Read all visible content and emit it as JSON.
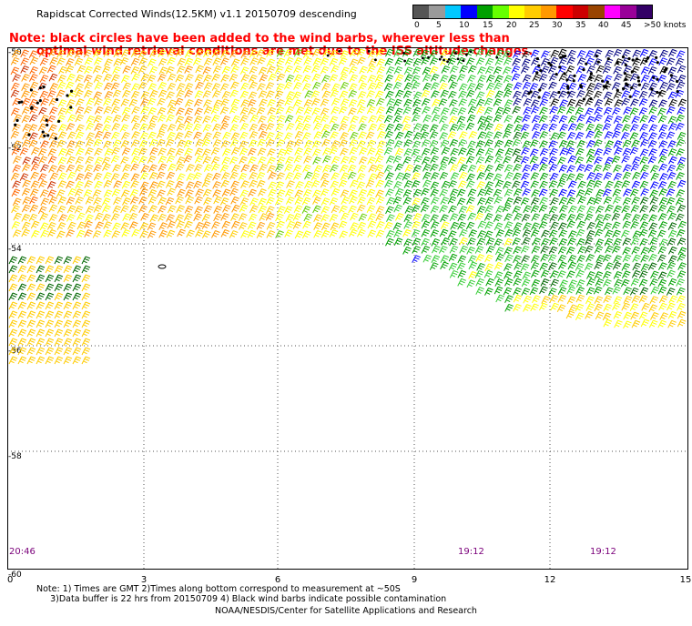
{
  "title": "Rapidscat Corrected Winds(12.5KM) v1.1 20150709 descending",
  "legend": {
    "colors": [
      "#555555",
      "#9a9a9a",
      "#00c8ff",
      "#0000ff",
      "#00a000",
      "#66ff00",
      "#ffff00",
      "#ffcc00",
      "#ff9900",
      "#ff0000",
      "#cc0000",
      "#994400",
      "#ff00ff",
      "#990099",
      "#330066"
    ],
    "labels": [
      "0",
      "5",
      "10",
      "15",
      "20",
      "25",
      "30",
      "35",
      "40",
      "45",
      ">50 knots"
    ]
  },
  "note": {
    "line1": "Note: black circles have been added to the wind barbs, wherever less than",
    "line2": "optimal wind retrieval conditions are met due to the ISS altitude changes."
  },
  "axes": {
    "x_ticks": [
      "0",
      "3",
      "6",
      "9",
      "12",
      "15"
    ],
    "y_ticks": [
      "-50",
      "-52",
      "-54",
      "-56",
      "-58",
      "-60"
    ]
  },
  "times": [
    "20:46",
    "19:12",
    "19:12"
  ],
  "footnote": "Note: 1) Times are GMT 2)Times along bottom correspond to measurement at ~50S\n     3)Data buffer is 22 hrs from 20150709 4) Black wind barbs indicate possible contamination",
  "credit": "NOAA/NESDIS/Center for Satellite Applications and Research"
}
